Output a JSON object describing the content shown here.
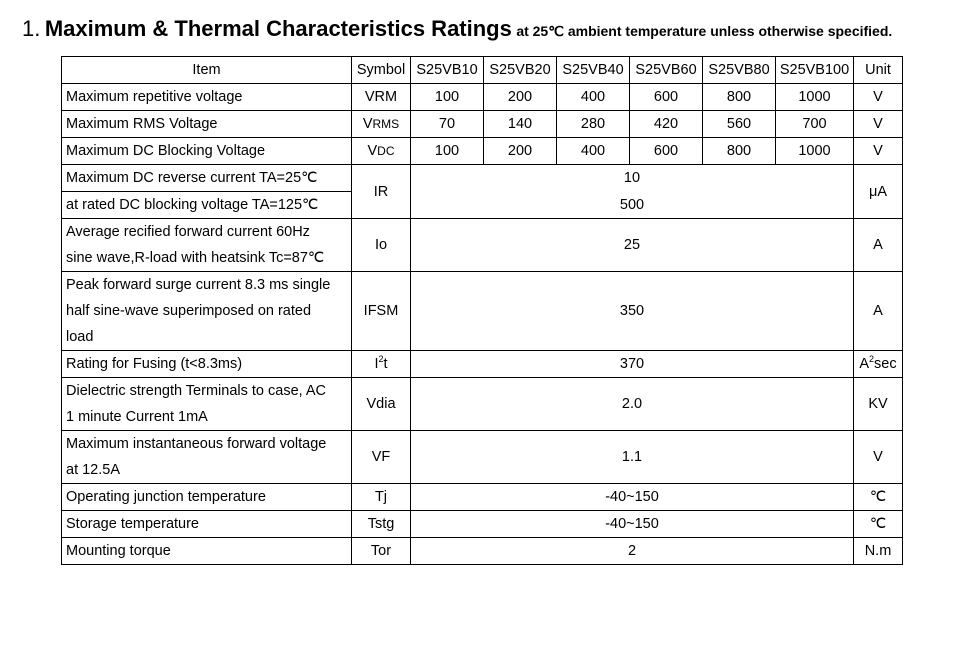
{
  "heading": {
    "number": "1.",
    "title": "Maximum & Thermal Characteristics Ratings",
    "subtitle": "at 25℃ ambient temperature unless otherwise specified."
  },
  "table": {
    "headers": {
      "item": "Item",
      "symbol": "Symbol",
      "models": [
        "S25VB10",
        "S25VB20",
        "S25VB40",
        "S25VB60",
        "S25VB80",
        "S25VB100"
      ],
      "unit": "Unit"
    },
    "vrrm": {
      "item": "Maximum repetitive voltage",
      "symbol": "VRM",
      "values": [
        "100",
        "200",
        "400",
        "600",
        "800",
        "1000"
      ],
      "unit": "V"
    },
    "vrms": {
      "item": "Maximum RMS Voltage",
      "symbol_main": "V",
      "symbol_sub": "RMS",
      "values": [
        "70",
        "140",
        "280",
        "420",
        "560",
        "700"
      ],
      "unit": "V"
    },
    "vdc": {
      "item": "Maximum DC Blocking Voltage",
      "symbol_main": "V",
      "symbol_sub": "DC",
      "values": [
        "100",
        "200",
        "400",
        "600",
        "800",
        "1000"
      ],
      "unit": "V"
    },
    "ir": {
      "item_line1": "Maximum DC reverse current TA=25℃",
      "item_line2": "at rated DC blocking voltage TA=125℃",
      "symbol": "IR",
      "value1": "10",
      "value2": "500",
      "unit": "μA"
    },
    "io": {
      "item_line1": "Average recified forward current 60Hz",
      "item_line2": "sine wave,R-load with heatsink Tc=87℃",
      "symbol": "Io",
      "value": "25",
      "unit": "A"
    },
    "ifsm": {
      "item_line1": "Peak forward surge current 8.3 ms single",
      "item_line2": "half sine-wave superimposed on rated",
      "item_line3": "load",
      "symbol": "IFSM",
      "value": "350",
      "unit": "A"
    },
    "i2t": {
      "item": "Rating for Fusing (t<8.3ms)",
      "symbol_main": "I",
      "symbol_sup": "2",
      "symbol_tail": "t",
      "value": "370",
      "unit_main": "A",
      "unit_sup": "2",
      "unit_tail": "sec"
    },
    "vdia": {
      "item_line1": "Dielectric strength Terminals to case, AC",
      "item_line2": "1 minute Current 1mA",
      "symbol": "Vdia",
      "value": "2.0",
      "unit": "KV"
    },
    "vf": {
      "item_line1": "Maximum instantaneous forward voltage",
      "item_line2": "at 12.5A",
      "symbol": "VF",
      "value": "1.1",
      "unit": "V"
    },
    "tj": {
      "item": "Operating junction temperature",
      "symbol": "Tj",
      "value": "-40~150",
      "unit": "℃"
    },
    "tstg": {
      "item": "Storage temperature",
      "symbol": "Tstg",
      "value": "-40~150",
      "unit": "℃"
    },
    "tor": {
      "item": "Mounting torque",
      "symbol": "Tor",
      "value": "2",
      "unit": "N.m"
    }
  }
}
